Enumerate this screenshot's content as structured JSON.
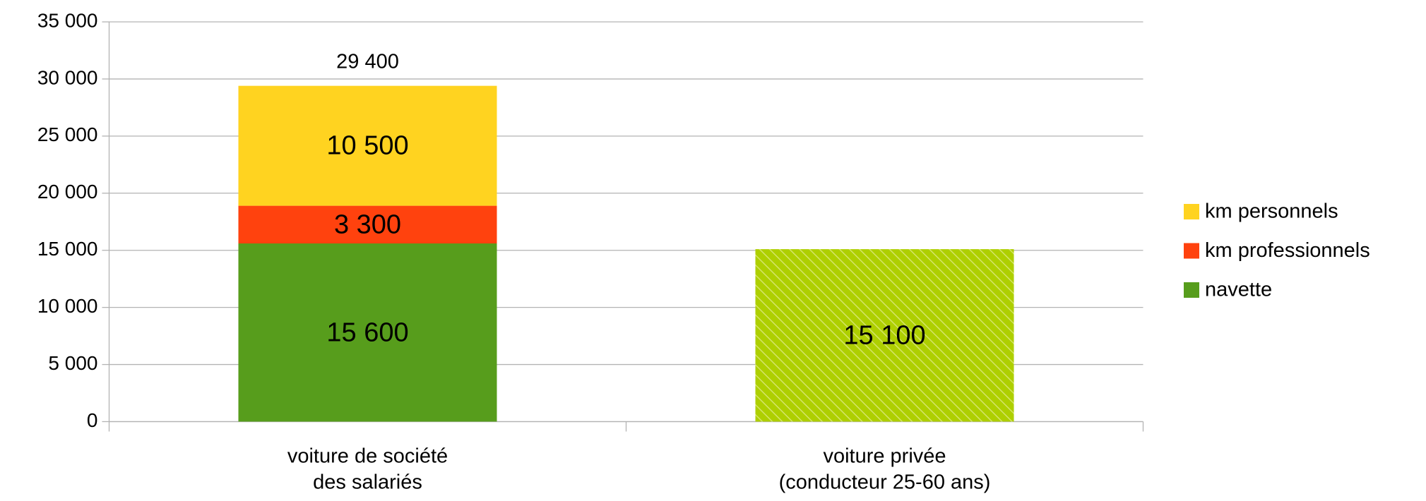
{
  "chart_data": {
    "type": "stacked_bar",
    "categories": [
      [
        "voiture de société",
        "des salariés"
      ],
      [
        "voiture privée",
        "(conducteur 25-60 ans)"
      ]
    ],
    "series": [
      {
        "name": "navette",
        "color": "#579d1c",
        "values": [
          15600,
          null
        ],
        "value_labels": [
          "15 600",
          null
        ]
      },
      {
        "name": "km professionnels",
        "color": "#ff420e",
        "values": [
          3300,
          null
        ],
        "value_labels": [
          "3 300",
          null
        ]
      },
      {
        "name": "km personnels",
        "color": "#ffd320",
        "values": [
          10500,
          null
        ],
        "value_labels": [
          "10 500",
          null
        ]
      },
      {
        "color": "#aecf00",
        "hatch": true,
        "values": [
          null,
          15100
        ],
        "value_labels": [
          null,
          "15 100"
        ]
      }
    ],
    "totals": [
      29400,
      null
    ],
    "total_labels": [
      "29 400",
      null
    ],
    "ylim": [
      0,
      35000
    ],
    "yticks": [
      0,
      {
        "value": 5000,
        "label": "5 000"
      },
      {
        "value": 10000,
        "label": "10 000"
      },
      {
        "value": 15000,
        "label": "15 000"
      },
      {
        "value": 20000,
        "label": "20 000"
      },
      {
        "value": 25000,
        "label": "25 000"
      },
      {
        "value": 30000,
        "label": "30 000"
      },
      {
        "value": 35000,
        "label": "35 000"
      }
    ],
    "grid": true,
    "legend": "right"
  }
}
